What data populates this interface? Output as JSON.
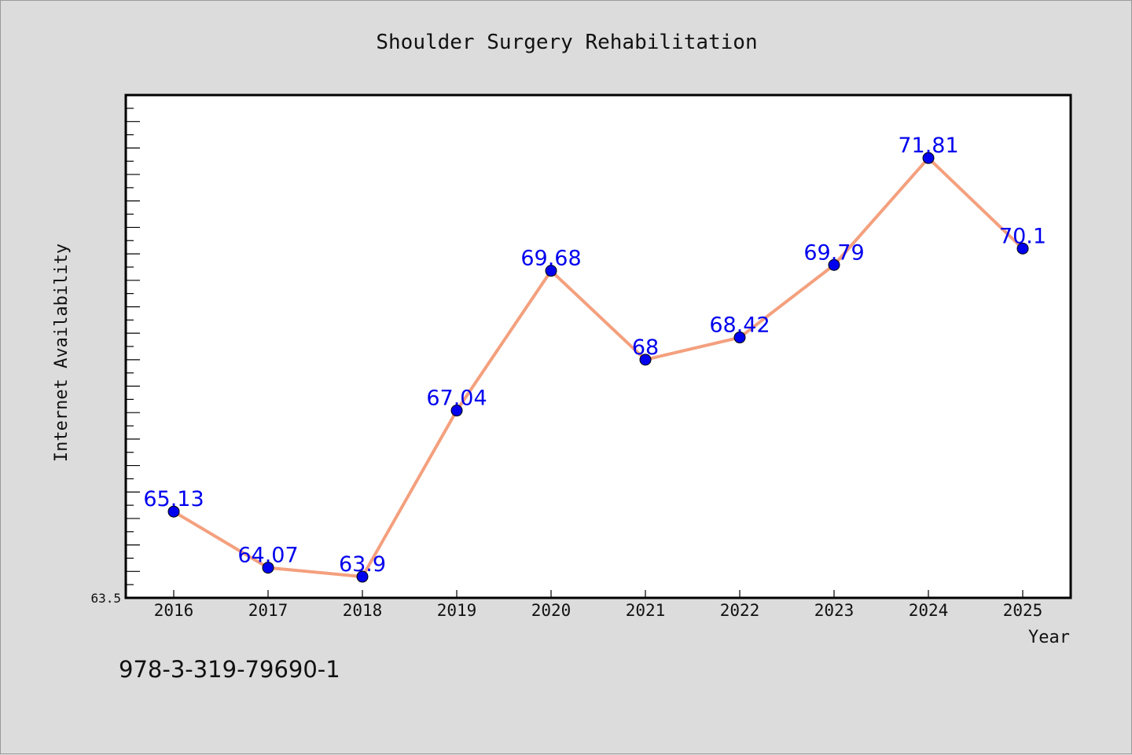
{
  "chart_data": {
    "type": "line",
    "title": "Shoulder Surgery Rehabilitation",
    "xlabel": "Year",
    "ylabel": "Internet Availability",
    "ylim": [
      63.5,
      73.0
    ],
    "y_tick_label_shown": "63.5",
    "categories": [
      "2016",
      "2017",
      "2018",
      "2019",
      "2020",
      "2021",
      "2022",
      "2023",
      "2024",
      "2025"
    ],
    "series": [
      {
        "values": [
          65.13,
          64.07,
          63.9,
          67.04,
          69.68,
          68,
          68.42,
          69.79,
          71.81,
          70.1
        ],
        "labels": [
          "65.13",
          "64.07",
          "63.9",
          "67.04",
          "69.68",
          "68",
          "68.42",
          "69.79",
          "71.81",
          "70.1"
        ],
        "line_color": "#f4a07e",
        "marker_color": "#0000ee",
        "label_color": "#0000ee"
      }
    ],
    "grid": false,
    "legend": "none"
  },
  "footnote": "978-3-319-79690-1"
}
